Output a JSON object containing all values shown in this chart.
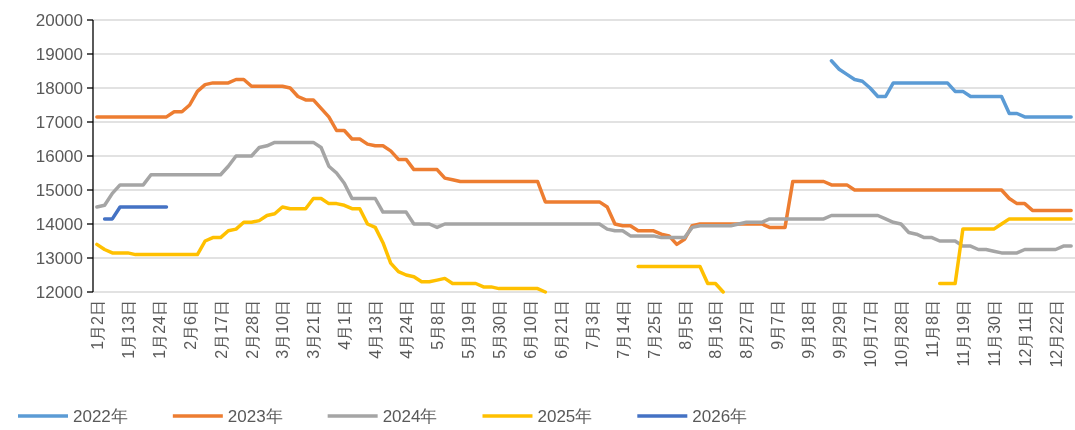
{
  "chart_data": {
    "type": "line",
    "categories": [
      "1月2日",
      null,
      null,
      null,
      "1月13日",
      null,
      null,
      null,
      "1月24日",
      null,
      null,
      null,
      "2月6日",
      null,
      null,
      null,
      "2月17日",
      null,
      null,
      null,
      "2月28日",
      null,
      null,
      null,
      "3月10日",
      null,
      null,
      null,
      "3月21日",
      null,
      null,
      null,
      "4月1日",
      null,
      null,
      null,
      "4月13日",
      null,
      null,
      null,
      "4月24日",
      null,
      null,
      null,
      "5月8日",
      null,
      null,
      null,
      "5月19日",
      null,
      null,
      null,
      "5月30日",
      null,
      null,
      null,
      "6月10日",
      null,
      null,
      null,
      "6月21日",
      null,
      null,
      null,
      "7月3日",
      null,
      null,
      null,
      "7月14日",
      null,
      null,
      null,
      "7月25日",
      null,
      null,
      null,
      "8月5日",
      null,
      null,
      null,
      "8月16日",
      null,
      null,
      null,
      "8月27日",
      null,
      null,
      null,
      "9月7日",
      null,
      null,
      null,
      "9月18日",
      null,
      null,
      null,
      "9月29日",
      null,
      null,
      null,
      "10月17日",
      null,
      null,
      null,
      "10月28日",
      null,
      null,
      null,
      "11月8日",
      null,
      null,
      null,
      "11月19日",
      null,
      null,
      null,
      "11月30日",
      null,
      null,
      null,
      "12月11日",
      null,
      null,
      null,
      "12月22日",
      null,
      null
    ],
    "series": [
      {
        "name": "2022年",
        "color": "#5b9bd5",
        "values": [
          null,
          null,
          null,
          null,
          null,
          null,
          null,
          null,
          null,
          null,
          null,
          null,
          null,
          null,
          null,
          null,
          null,
          null,
          null,
          null,
          null,
          null,
          null,
          null,
          null,
          null,
          null,
          null,
          null,
          null,
          null,
          null,
          null,
          null,
          null,
          null,
          null,
          null,
          null,
          null,
          null,
          null,
          null,
          null,
          null,
          null,
          null,
          null,
          null,
          null,
          null,
          null,
          null,
          null,
          null,
          null,
          null,
          null,
          null,
          null,
          null,
          null,
          null,
          null,
          null,
          null,
          null,
          null,
          null,
          null,
          null,
          null,
          null,
          null,
          null,
          null,
          null,
          null,
          null,
          null,
          null,
          null,
          null,
          null,
          null,
          null,
          null,
          null,
          null,
          null,
          null,
          null,
          null,
          null,
          null,
          18800,
          18550,
          18400,
          18250,
          18200,
          18000,
          17750,
          17750,
          18150,
          18150,
          18150,
          18150,
          18150,
          18150,
          18150,
          18150,
          17900,
          17900,
          17750,
          17750,
          17750,
          17750,
          17750,
          17250,
          17250,
          17150,
          17150,
          17150,
          17150,
          17150,
          17150,
          17150
        ]
      },
      {
        "name": "2023年",
        "color": "#ed7d31",
        "values": [
          17150,
          17150,
          17150,
          17150,
          17150,
          17150,
          17150,
          17150,
          17150,
          17150,
          17300,
          17300,
          17500,
          17900,
          18100,
          18150,
          18150,
          18150,
          18250,
          18250,
          18050,
          18050,
          18050,
          18050,
          18050,
          18000,
          17750,
          17650,
          17650,
          17400,
          17150,
          16750,
          16750,
          16500,
          16500,
          16350,
          16300,
          16300,
          16150,
          15900,
          15900,
          15600,
          15600,
          15600,
          15600,
          15350,
          15300,
          15250,
          15250,
          15250,
          15250,
          15250,
          15250,
          15250,
          15250,
          15250,
          15250,
          15250,
          14650,
          14650,
          14650,
          14650,
          14650,
          14650,
          14650,
          14650,
          14500,
          14000,
          13950,
          13950,
          13800,
          13800,
          13800,
          13700,
          13650,
          13400,
          13550,
          13950,
          14000,
          14000,
          14000,
          14000,
          14000,
          14000,
          14000,
          14000,
          14000,
          13900,
          13900,
          13900,
          15250,
          15250,
          15250,
          15250,
          15250,
          15150,
          15150,
          15150,
          15000,
          15000,
          15000,
          15000,
          15000,
          15000,
          15000,
          15000,
          15000,
          15000,
          15000,
          15000,
          15000,
          15000,
          15000,
          15000,
          15000,
          15000,
          15000,
          15000,
          14750,
          14600,
          14600,
          14400,
          14400,
          14400,
          14400,
          14400,
          14400
        ]
      },
      {
        "name": "2024年",
        "color": "#a5a5a5",
        "values": [
          14500,
          14550,
          14900,
          15150,
          15150,
          15150,
          15150,
          15450,
          15450,
          15450,
          15450,
          15450,
          15450,
          15450,
          15450,
          15450,
          15450,
          15700,
          16000,
          16000,
          16000,
          16250,
          16300,
          16400,
          16400,
          16400,
          16400,
          16400,
          16400,
          16250,
          15700,
          15500,
          15200,
          14750,
          14750,
          14750,
          14750,
          14350,
          14350,
          14350,
          14350,
          14000,
          14000,
          14000,
          13900,
          14000,
          14000,
          14000,
          14000,
          14000,
          14000,
          14000,
          14000,
          14000,
          14000,
          14000,
          14000,
          14000,
          14000,
          14000,
          14000,
          14000,
          14000,
          14000,
          14000,
          14000,
          13850,
          13800,
          13800,
          13650,
          13650,
          13650,
          13650,
          13600,
          13600,
          13600,
          13600,
          13900,
          13950,
          13950,
          13950,
          13950,
          13950,
          14000,
          14050,
          14050,
          14050,
          14150,
          14150,
          14150,
          14150,
          14150,
          14150,
          14150,
          14150,
          14250,
          14250,
          14250,
          14250,
          14250,
          14250,
          14250,
          14150,
          14050,
          14000,
          13750,
          13700,
          13600,
          13600,
          13500,
          13500,
          13500,
          13350,
          13350,
          13250,
          13250,
          13200,
          13150,
          13150,
          13150,
          13250,
          13250,
          13250,
          13250,
          13250,
          13350,
          13350
        ]
      },
      {
        "name": "2025年",
        "color": "#ffc000",
        "values": [
          13400,
          13250,
          13150,
          13150,
          13150,
          13100,
          13100,
          13100,
          13100,
          13100,
          13100,
          13100,
          13100,
          13100,
          13500,
          13600,
          13600,
          13800,
          13850,
          14050,
          14050,
          14100,
          14250,
          14300,
          14500,
          14450,
          14450,
          14450,
          14750,
          14750,
          14600,
          14600,
          14550,
          14450,
          14450,
          14000,
          13900,
          13450,
          12850,
          12600,
          12500,
          12450,
          12300,
          12300,
          12350,
          12400,
          12250,
          12250,
          12250,
          12250,
          12150,
          12150,
          12100,
          12100,
          12100,
          12100,
          12100,
          12100,
          12000,
          null,
          null,
          null,
          null,
          null,
          null,
          null,
          null,
          null,
          null,
          null,
          12750,
          12750,
          12750,
          12750,
          12750,
          12750,
          12750,
          12750,
          12750,
          12250,
          12250,
          12000,
          null,
          null,
          null,
          null,
          null,
          null,
          null,
          null,
          null,
          null,
          null,
          null,
          null,
          null,
          null,
          null,
          null,
          null,
          null,
          null,
          null,
          null,
          null,
          null,
          null,
          null,
          null,
          12250,
          12250,
          12250,
          13850,
          13850,
          13850,
          13850,
          13850,
          14000,
          14150,
          14150,
          14150,
          14150,
          14150,
          14150,
          14150,
          14150,
          14150
        ]
      },
      {
        "name": "2026年",
        "color": "#4472c4",
        "values": [
          null,
          14150,
          14150,
          14500,
          14500,
          14500,
          14500,
          14500,
          14500,
          14500,
          null,
          null,
          null,
          null,
          null,
          null,
          null,
          null,
          null,
          null,
          null,
          null,
          null,
          null,
          null,
          null,
          null,
          null,
          null,
          null,
          null,
          null,
          null,
          null,
          null,
          null,
          null,
          null,
          null,
          null,
          null,
          null,
          null,
          null,
          null,
          null,
          null,
          null,
          null,
          null,
          null,
          null,
          null,
          null,
          null,
          null,
          null,
          null,
          null,
          null,
          null,
          null,
          null,
          null,
          null,
          null,
          null,
          null,
          null,
          null,
          null,
          null,
          null,
          null,
          null,
          null,
          null,
          null,
          null,
          null,
          null,
          null,
          null,
          null,
          null,
          null,
          null,
          null,
          null,
          null,
          null,
          null,
          null,
          null,
          null,
          null,
          null,
          null,
          null,
          null,
          null,
          null,
          null,
          null,
          null,
          null,
          null,
          null,
          null,
          null,
          null,
          null,
          null,
          null,
          null,
          null,
          null,
          null,
          null,
          null,
          null,
          null,
          null,
          null,
          null,
          null,
          null
        ]
      }
    ],
    "ylim": [
      12000,
      20000
    ],
    "yticks": [
      12000,
      13000,
      14000,
      15000,
      16000,
      17000,
      18000,
      19000,
      20000
    ],
    "grid": "y",
    "legend": "bottom left"
  }
}
